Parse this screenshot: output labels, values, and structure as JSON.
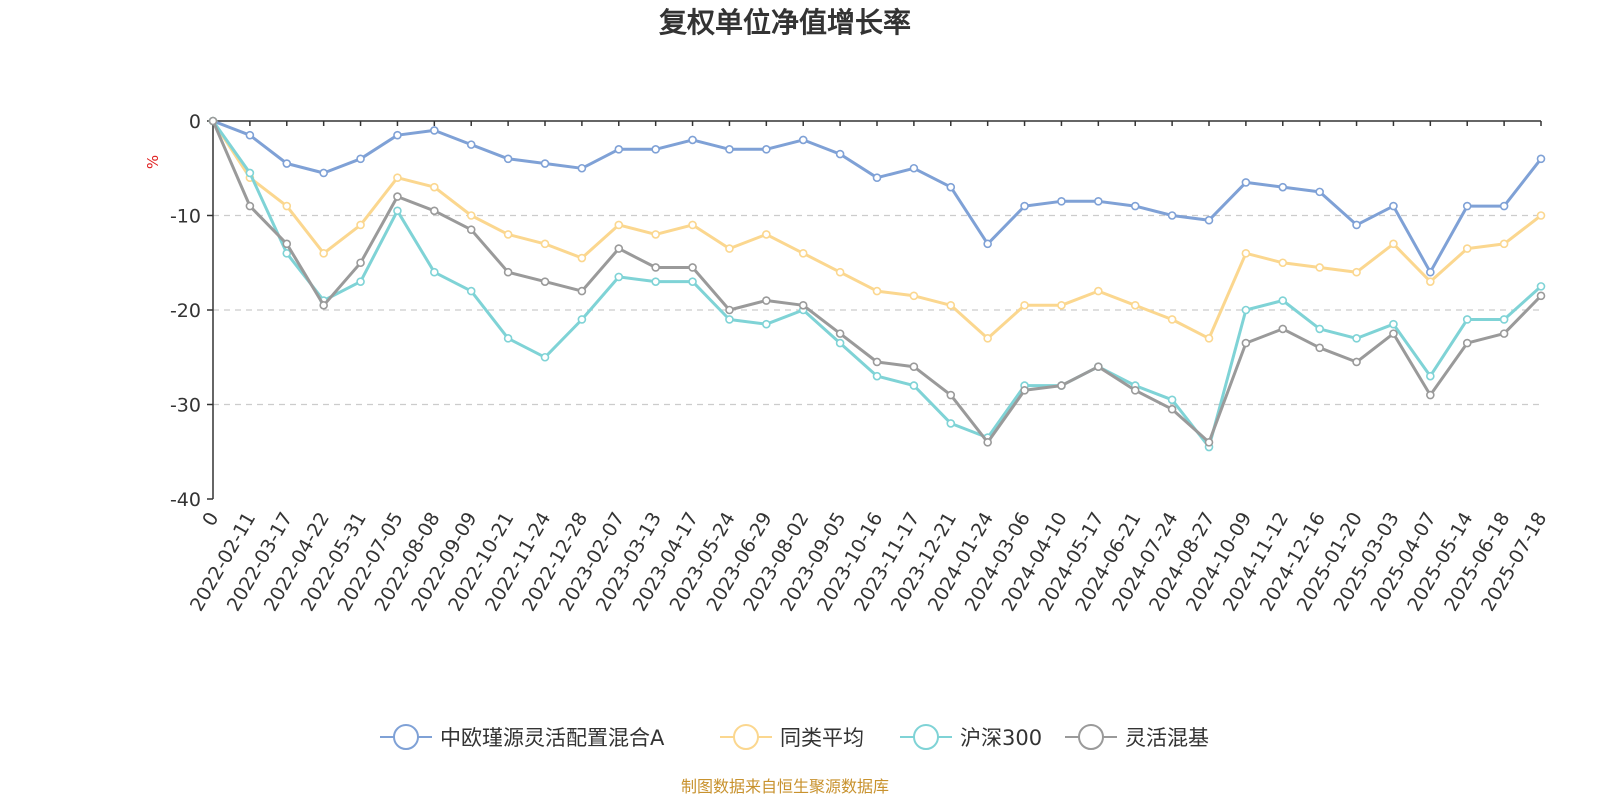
{
  "chart_data": {
    "type": "line",
    "title": "复权单位净值增长率",
    "ylabel": "%",
    "ylim": [
      -40,
      0
    ],
    "yticks": [
      0,
      -10,
      -20,
      -30,
      -40
    ],
    "grid": true,
    "legend_position": "bottom",
    "x_tick_labels": [
      "0",
      "2022-02-11",
      "2022-03-17",
      "2022-04-22",
      "2022-05-31",
      "2022-07-05",
      "2022-08-08",
      "2022-09-09",
      "2022-10-21",
      "2022-11-24",
      "2022-12-28",
      "2023-02-07",
      "2023-03-13",
      "2023-04-17",
      "2023-05-24",
      "2023-06-29",
      "2023-08-02",
      "2023-09-05",
      "2023-10-16",
      "2023-11-17",
      "2023-12-21",
      "2024-01-24",
      "2024-03-06",
      "2024-04-10",
      "2024-05-17",
      "2024-06-21",
      "2024-07-24",
      "2024-08-27",
      "2024-10-09",
      "2024-11-12",
      "2024-12-16",
      "2025-01-20",
      "2025-03-03",
      "2025-04-07",
      "2025-05-14",
      "2025-06-18",
      "2025-07-18"
    ],
    "series": [
      {
        "name": "中欧瑾源灵活配置混合A",
        "color": "#7fa1d6",
        "values": [
          0,
          -1.5,
          -4.5,
          -5.5,
          -4.0,
          -1.5,
          -1.0,
          -2.5,
          -4.0,
          -4.5,
          -5.0,
          -3.0,
          -3.0,
          -2.0,
          -3.0,
          -3.0,
          -2.0,
          -3.5,
          -6.0,
          -5.0,
          -7.0,
          -13.0,
          -9.0,
          -8.5,
          -8.5,
          -9.0,
          -10.0,
          -10.5,
          -6.5,
          -7.0,
          -7.5,
          -11.0,
          -9.0,
          -16.0,
          -9.0,
          -9.0,
          -4.0
        ]
      },
      {
        "name": "同类平均",
        "color": "#fbd78f",
        "values": [
          0,
          -6.0,
          -9.0,
          -14.0,
          -11.0,
          -6.0,
          -7.0,
          -10.0,
          -12.0,
          -13.0,
          -14.5,
          -11.0,
          -12.0,
          -11.0,
          -13.5,
          -12.0,
          -14.0,
          -16.0,
          -18.0,
          -18.5,
          -19.5,
          -23.0,
          -19.5,
          -19.5,
          -18.0,
          -19.5,
          -21.0,
          -23.0,
          -14.0,
          -15.0,
          -15.5,
          -16.0,
          -13.0,
          -17.0,
          -13.5,
          -13.0,
          -10.0
        ]
      },
      {
        "name": "沪深300",
        "color": "#7fd3d6",
        "values": [
          0,
          -5.5,
          -14.0,
          -19.0,
          -17.0,
          -9.5,
          -16.0,
          -18.0,
          -23.0,
          -25.0,
          -21.0,
          -16.5,
          -17.0,
          -17.0,
          -21.0,
          -21.5,
          -20.0,
          -23.5,
          -27.0,
          -28.0,
          -32.0,
          -33.5,
          -28.0,
          -28.0,
          -26.0,
          -28.0,
          -29.5,
          -34.5,
          -20.0,
          -19.0,
          -22.0,
          -23.0,
          -21.5,
          -27.0,
          -21.0,
          -21.0,
          -17.5
        ]
      },
      {
        "name": "灵活混基",
        "color": "#9a9a9a",
        "values": [
          0,
          -9.0,
          -13.0,
          -19.5,
          -15.0,
          -8.0,
          -9.5,
          -11.5,
          -16.0,
          -17.0,
          -18.0,
          -13.5,
          -15.5,
          -15.5,
          -20.0,
          -19.0,
          -19.5,
          -22.5,
          -25.5,
          -26.0,
          -29.0,
          -34.0,
          -28.5,
          -28.0,
          -26.0,
          -28.5,
          -30.5,
          -34.0,
          -23.5,
          -22.0,
          -24.0,
          -25.5,
          -22.5,
          -29.0,
          -23.5,
          -22.5,
          -18.5
        ]
      }
    ]
  },
  "source": "制图数据来自恒生聚源数据库"
}
